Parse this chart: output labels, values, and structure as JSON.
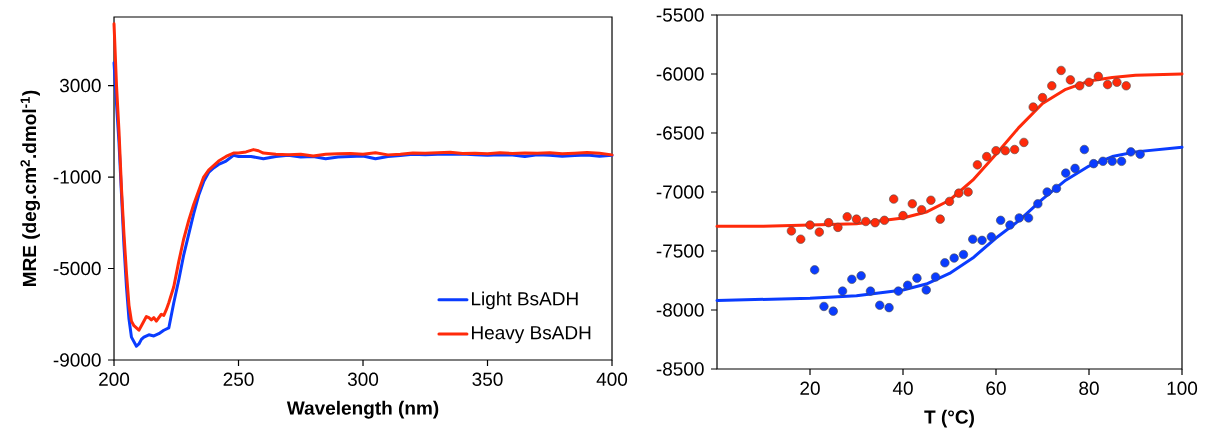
{
  "chart_data": [
    {
      "type": "line",
      "xlabel": "Wavelength (nm)",
      "ylabel": "MRE (deg.cm$^{2}$.dmol$^{-1}$)",
      "xlim": [
        200,
        400
      ],
      "ylim": [
        -9000,
        6000
      ],
      "xticks": [
        200,
        250,
        300,
        350,
        400
      ],
      "yticks": [
        -9000,
        -5000,
        -1000,
        3000
      ],
      "legend": "bottom right",
      "grid": false,
      "series": [
        {
          "name": "Light BsADH",
          "color": "#0a3cff",
          "x": [
            200,
            201,
            202,
            203,
            204,
            205,
            206,
            207,
            208,
            209,
            210,
            211,
            212,
            214,
            216,
            218,
            220,
            222,
            224,
            226,
            228,
            230,
            232,
            234,
            236,
            238,
            240,
            242,
            245,
            248,
            250,
            255,
            260,
            265,
            270,
            275,
            280,
            285,
            290,
            295,
            300,
            305,
            310,
            315,
            320,
            325,
            330,
            335,
            340,
            345,
            350,
            355,
            360,
            365,
            370,
            375,
            380,
            385,
            390,
            395,
            400
          ],
          "values": [
            4000,
            2200,
            500,
            null,
            -4000,
            -5800,
            -7200,
            -8000,
            -8200,
            -8400,
            -8300,
            -8100,
            -8000,
            -7900,
            -7950,
            -7850,
            -7700,
            -7600,
            -6500,
            -5500,
            -4400,
            -3500,
            -2600,
            -1800,
            -1200,
            -800,
            -600,
            -450,
            -300,
            -50,
            -100,
            -100,
            -200,
            -100,
            -50,
            -120,
            -100,
            -200,
            -120,
            -100,
            -80,
            -200,
            -100,
            -60,
            0,
            -20,
            0,
            0,
            10,
            -20,
            -50,
            -30,
            -40,
            -100,
            -30,
            -50,
            -90,
            -60,
            -40,
            -90,
            -50
          ]
        },
        {
          "name": "Heavy BsADH",
          "color": "#ff2a0a",
          "x": [
            200,
            201,
            202,
            203,
            204,
            205,
            206,
            207,
            208,
            209,
            210,
            211,
            212,
            213,
            214,
            215,
            216,
            217,
            218,
            219,
            220,
            221,
            222,
            224,
            226,
            228,
            230,
            232,
            234,
            236,
            238,
            240,
            242,
            245,
            248,
            250,
            253,
            256,
            258,
            260,
            265,
            270,
            275,
            280,
            285,
            290,
            295,
            300,
            305,
            310,
            315,
            320,
            325,
            330,
            335,
            340,
            345,
            350,
            355,
            360,
            365,
            370,
            375,
            380,
            385,
            390,
            395,
            400
          ],
          "values": [
            5700,
            3000,
            1000,
            -1500,
            -3500,
            -5200,
            -6600,
            -7300,
            -7500,
            -7600,
            -7700,
            -7500,
            -7300,
            -7100,
            -7150,
            -7250,
            -7150,
            -7300,
            -7150,
            -7000,
            -7050,
            -6800,
            -6500,
            -5800,
            -4700,
            -3700,
            -2900,
            -2200,
            -1600,
            -1000,
            -700,
            -500,
            -300,
            -100,
            50,
            50,
            100,
            200,
            150,
            50,
            0,
            -20,
            0,
            -80,
            0,
            20,
            30,
            0,
            60,
            -30,
            0,
            50,
            40,
            60,
            80,
            30,
            40,
            20,
            60,
            30,
            50,
            40,
            60,
            20,
            40,
            70,
            40,
            -30
          ]
        }
      ]
    },
    {
      "type": "scatter",
      "xlabel": "T (°C)",
      "xlim": [
        0,
        100
      ],
      "ylim": [
        -8500,
        -5500
      ],
      "xticks": [
        20,
        40,
        60,
        80,
        100
      ],
      "yticks": [
        -8500,
        -8000,
        -7500,
        -7000,
        -6500,
        -6000,
        -5500
      ],
      "grid": false,
      "series": [
        {
          "marker": "circle",
          "color": "#ff2a0a",
          "x": [
            16,
            18,
            20,
            22,
            24,
            26,
            28,
            30,
            32,
            34,
            36,
            38,
            40,
            42,
            44,
            46,
            48,
            50,
            52,
            54,
            56,
            58,
            60,
            62,
            64,
            66,
            68,
            70,
            72,
            74,
            76,
            78,
            80,
            82,
            84,
            86,
            88
          ],
          "values": [
            -7330,
            -7400,
            -7280,
            -7340,
            -7260,
            -7300,
            -7210,
            -7230,
            -7250,
            -7260,
            -7240,
            -7060,
            -7200,
            -7100,
            -7150,
            -7070,
            -7230,
            -7080,
            -7010,
            -7000,
            -6770,
            -6700,
            -6650,
            -6650,
            -6640,
            -6580,
            -6280,
            -6200,
            -6100,
            -5970,
            -6050,
            -6100,
            -6070,
            -6020,
            -6090,
            -6070,
            -6100
          ]
        },
        {
          "marker": "circle",
          "color": "#0a3cff",
          "x": [
            21,
            23,
            25,
            27,
            29,
            31,
            33,
            35,
            37,
            39,
            41,
            43,
            45,
            47,
            49,
            51,
            53,
            55,
            57,
            59,
            61,
            63,
            65,
            67,
            69,
            71,
            73,
            75,
            77,
            79,
            81,
            83,
            85,
            87,
            89,
            91
          ],
          "values": [
            -7660,
            -7970,
            -8010,
            -7840,
            -7740,
            -7710,
            -7840,
            -7960,
            -7980,
            -7840,
            -7790,
            -7730,
            -7830,
            -7720,
            -7600,
            -7560,
            -7530,
            -7400,
            -7410,
            -7380,
            -7240,
            -7280,
            -7220,
            -7220,
            -7100,
            -7000,
            -6970,
            -6840,
            -6800,
            -6640,
            -6760,
            -6740,
            -6740,
            -6740,
            -6660,
            -6680
          ]
        },
        {
          "type": "line",
          "marker": "none",
          "color": "#ff2a0a",
          "x": [
            0,
            10,
            20,
            30,
            40,
            45,
            50,
            55,
            60,
            65,
            70,
            75,
            80,
            85,
            90,
            100
          ],
          "values": [
            -7290,
            -7290,
            -7280,
            -7270,
            -7220,
            -7170,
            -7070,
            -6900,
            -6680,
            -6450,
            -6250,
            -6130,
            -6060,
            -6030,
            -6010,
            -6000
          ]
        },
        {
          "type": "line",
          "marker": "none",
          "color": "#0a3cff",
          "x": [
            0,
            10,
            20,
            30,
            40,
            45,
            50,
            55,
            60,
            65,
            70,
            75,
            80,
            85,
            90,
            100
          ],
          "values": [
            -7920,
            -7910,
            -7900,
            -7880,
            -7830,
            -7780,
            -7690,
            -7560,
            -7390,
            -7240,
            -7060,
            -6900,
            -6780,
            -6700,
            -6660,
            -6620
          ]
        }
      ]
    }
  ]
}
